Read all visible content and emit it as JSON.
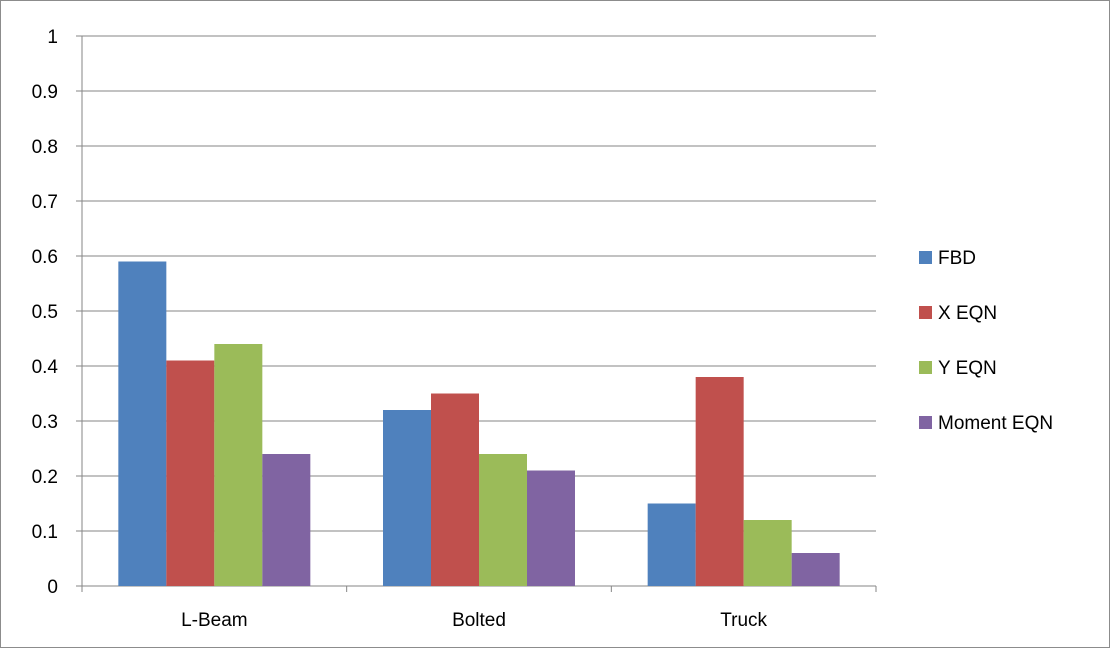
{
  "chart_data": {
    "type": "bar",
    "categories": [
      "L-Beam",
      "Bolted",
      "Truck"
    ],
    "series": [
      {
        "name": "FBD",
        "color": "#4f81bd",
        "values": [
          0.59,
          0.32,
          0.15
        ]
      },
      {
        "name": "X EQN",
        "color": "#c0504d",
        "values": [
          0.41,
          0.35,
          0.38
        ]
      },
      {
        "name": "Y EQN",
        "color": "#9bbb59",
        "values": [
          0.44,
          0.24,
          0.12
        ]
      },
      {
        "name": "Moment EQN",
        "color": "#8064a2",
        "values": [
          0.24,
          0.21,
          0.06
        ]
      }
    ],
    "yticks": [
      "0",
      "0.1",
      "0.2",
      "0.3",
      "0.4",
      "0.5",
      "0.6",
      "0.7",
      "0.8",
      "0.9",
      "1"
    ],
    "ylim": [
      0,
      1
    ],
    "grid": true,
    "legend_position": "right",
    "title": "",
    "xlabel": "",
    "ylabel": ""
  }
}
